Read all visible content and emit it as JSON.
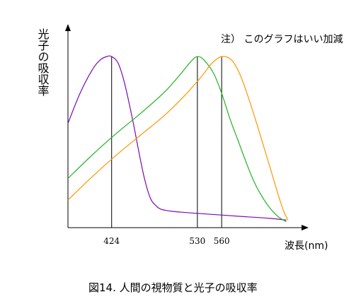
{
  "chart_data": {
    "type": "line",
    "title": "",
    "xlabel": "波長(nm)",
    "ylabel": "光子の吸収率",
    "note": "注） このグラフはいい加減",
    "caption": "図14. 人間の視物質と光子の吸収率",
    "xlim": [
      370,
      650
    ],
    "ylim": [
      0,
      1
    ],
    "x_ticks": [
      424,
      530,
      560
    ],
    "x_tick_labels": [
      "424",
      "530",
      "560"
    ],
    "grid": false,
    "legend": "none",
    "series": [
      {
        "peak": 424,
        "color": "#7a0ab4",
        "points": [
          [
            370,
            0.6
          ],
          [
            385,
            0.78
          ],
          [
            400,
            0.92
          ],
          [
            410,
            0.98
          ],
          [
            418,
            1.0
          ],
          [
            424,
            1.0
          ],
          [
            432,
            0.96
          ],
          [
            440,
            0.84
          ],
          [
            450,
            0.62
          ],
          [
            458,
            0.42
          ],
          [
            465,
            0.26
          ],
          [
            472,
            0.15
          ],
          [
            478,
            0.11
          ],
          [
            485,
            0.085
          ],
          [
            500,
            0.072
          ],
          [
            530,
            0.06
          ],
          [
            560,
            0.05
          ],
          [
            590,
            0.04
          ],
          [
            620,
            0.03
          ],
          [
            640,
            0.02
          ]
        ]
      },
      {
        "peak": 530,
        "color": "#1fb41f",
        "points": [
          [
            370,
            0.27
          ],
          [
            400,
            0.41
          ],
          [
            430,
            0.54
          ],
          [
            460,
            0.66
          ],
          [
            490,
            0.79
          ],
          [
            510,
            0.9
          ],
          [
            522,
            0.97
          ],
          [
            530,
            1.0
          ],
          [
            538,
            0.98
          ],
          [
            550,
            0.9
          ],
          [
            560,
            0.78
          ],
          [
            570,
            0.63
          ],
          [
            580,
            0.5
          ],
          [
            590,
            0.37
          ],
          [
            600,
            0.25
          ],
          [
            610,
            0.16
          ],
          [
            620,
            0.09
          ],
          [
            630,
            0.04
          ],
          [
            640,
            0.01
          ]
        ]
      },
      {
        "peak": 560,
        "color": "#ff9600",
        "points": [
          [
            370,
            0.14
          ],
          [
            400,
            0.28
          ],
          [
            430,
            0.41
          ],
          [
            460,
            0.53
          ],
          [
            490,
            0.65
          ],
          [
            515,
            0.77
          ],
          [
            535,
            0.88
          ],
          [
            548,
            0.96
          ],
          [
            560,
            1.0
          ],
          [
            572,
            0.98
          ],
          [
            582,
            0.9
          ],
          [
            592,
            0.77
          ],
          [
            602,
            0.62
          ],
          [
            612,
            0.46
          ],
          [
            622,
            0.3
          ],
          [
            630,
            0.17
          ],
          [
            637,
            0.07
          ],
          [
            642,
            0.02
          ]
        ]
      }
    ]
  }
}
